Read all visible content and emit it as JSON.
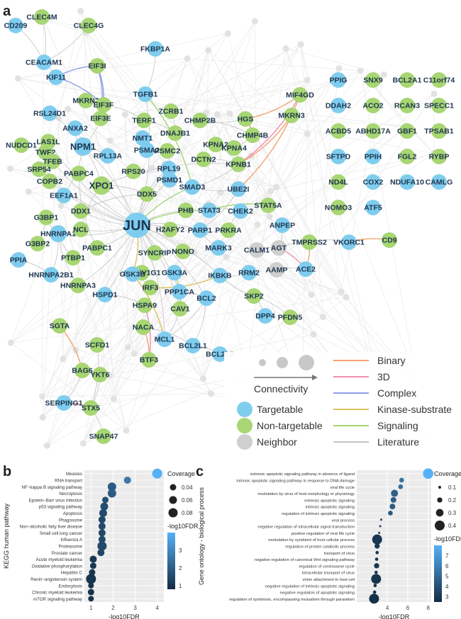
{
  "panels": {
    "a": "a",
    "b": "b",
    "c": "c"
  },
  "network": {
    "nodes": [
      {
        "id": "CD209",
        "type": "targetable"
      },
      {
        "id": "CLEC4M",
        "type": "non-targetable"
      },
      {
        "id": "CLEC4G",
        "type": "non-targetable"
      },
      {
        "id": "CEACAM1",
        "type": "targetable"
      },
      {
        "id": "KIF11",
        "type": "targetable"
      },
      {
        "id": "EIF3I",
        "type": "non-targetable"
      },
      {
        "id": "FKBP1A",
        "type": "targetable"
      },
      {
        "id": "TGFB1",
        "type": "targetable"
      },
      {
        "id": "MKRN2",
        "type": "non-targetable"
      },
      {
        "id": "EIF3F",
        "type": "non-targetable"
      },
      {
        "id": "EIF3E",
        "type": "non-targetable"
      },
      {
        "id": "RSL24D1",
        "type": "targetable"
      },
      {
        "id": "ANXA2",
        "type": "targetable"
      },
      {
        "id": "NPM1",
        "type": "targetable"
      },
      {
        "id": "NUDCD1",
        "type": "non-targetable"
      },
      {
        "id": "LAS1L",
        "type": "non-targetable"
      },
      {
        "id": "TWF2",
        "type": "non-targetable"
      },
      {
        "id": "TFEB",
        "type": "non-targetable"
      },
      {
        "id": "SRP54",
        "type": "non-targetable"
      },
      {
        "id": "COPB2",
        "type": "non-targetable"
      },
      {
        "id": "PABPC4",
        "type": "non-targetable"
      },
      {
        "id": "XPO1",
        "type": "non-targetable"
      },
      {
        "id": "EEF1A1",
        "type": "targetable"
      },
      {
        "id": "RPL13A",
        "type": "targetable"
      },
      {
        "id": "NMT1",
        "type": "targetable"
      },
      {
        "id": "PSMA2",
        "type": "targetable"
      },
      {
        "id": "PSMC2",
        "type": "non-targetable"
      },
      {
        "id": "TERF1",
        "type": "non-targetable"
      },
      {
        "id": "ZCRB1",
        "type": "non-targetable"
      },
      {
        "id": "DNAJB1",
        "type": "non-targetable"
      },
      {
        "id": "CHMP2B",
        "type": "non-targetable"
      },
      {
        "id": "HGS",
        "type": "non-targetable"
      },
      {
        "id": "MIF4GD",
        "type": "non-targetable"
      },
      {
        "id": "MKRN3",
        "type": "non-targetable"
      },
      {
        "id": "CHMP4B",
        "type": "non-targetable"
      },
      {
        "id": "KPNA2",
        "type": "non-targetable"
      },
      {
        "id": "KPNA4",
        "type": "non-targetable"
      },
      {
        "id": "DCTN2",
        "type": "non-targetable"
      },
      {
        "id": "KPNB1",
        "type": "non-targetable"
      },
      {
        "id": "RPS20",
        "type": "non-targetable"
      },
      {
        "id": "RPL19",
        "type": "targetable"
      },
      {
        "id": "PSMD1",
        "type": "targetable"
      },
      {
        "id": "SMAD3",
        "type": "targetable"
      },
      {
        "id": "UBE2I",
        "type": "targetable"
      },
      {
        "id": "DDX5",
        "type": "non-targetable"
      },
      {
        "id": "DDX1",
        "type": "non-targetable"
      },
      {
        "id": "G3BP1",
        "type": "non-targetable"
      },
      {
        "id": "HNRNPA1",
        "type": "targetable"
      },
      {
        "id": "G3BP2",
        "type": "non-targetable"
      },
      {
        "id": "NCL",
        "type": "non-targetable"
      },
      {
        "id": "JUN",
        "type": "targetable"
      },
      {
        "id": "PHB",
        "type": "non-targetable"
      },
      {
        "id": "STAT3",
        "type": "targetable"
      },
      {
        "id": "CHEK2",
        "type": "targetable"
      },
      {
        "id": "STAT5A",
        "type": "non-targetable"
      },
      {
        "id": "H2AFY2",
        "type": "non-targetable"
      },
      {
        "id": "PARP1",
        "type": "targetable"
      },
      {
        "id": "PRKRA",
        "type": "non-targetable"
      },
      {
        "id": "ANPEP",
        "type": "targetable"
      },
      {
        "id": "PPIA",
        "type": "targetable"
      },
      {
        "id": "PTBP1",
        "type": "non-targetable"
      },
      {
        "id": "PABPC1",
        "type": "non-targetable"
      },
      {
        "id": "SYNCRIP",
        "type": "non-targetable"
      },
      {
        "id": "NONO",
        "type": "non-targetable"
      },
      {
        "id": "MARK3",
        "type": "targetable"
      },
      {
        "id": "CALM1",
        "type": "neighbor"
      },
      {
        "id": "AGT",
        "type": "neighbor"
      },
      {
        "id": "TMPRSS2",
        "type": "non-targetable"
      },
      {
        "id": "VKORC1",
        "type": "targetable"
      },
      {
        "id": "CD9",
        "type": "non-targetable"
      },
      {
        "id": "HNRNPA2B1",
        "type": "targetable"
      },
      {
        "id": "ATP6V1G1",
        "type": "non-targetable"
      },
      {
        "id": "HNRNPA3",
        "type": "non-targetable"
      },
      {
        "id": "IRF3",
        "type": "non-targetable"
      },
      {
        "id": "GSK3B",
        "type": "targetable"
      },
      {
        "id": "GSK3A",
        "type": "targetable"
      },
      {
        "id": "IKBKB",
        "type": "targetable"
      },
      {
        "id": "RRM2",
        "type": "targetable"
      },
      {
        "id": "AAMP",
        "type": "neighbor"
      },
      {
        "id": "ACE2",
        "type": "targetable"
      },
      {
        "id": "HSPD1",
        "type": "targetable"
      },
      {
        "id": "PPP1CA",
        "type": "targetable"
      },
      {
        "id": "BCL2",
        "type": "targetable"
      },
      {
        "id": "SKP2",
        "type": "non-targetable"
      },
      {
        "id": "HSPA9",
        "type": "non-targetable"
      },
      {
        "id": "CAV1",
        "type": "non-targetable"
      },
      {
        "id": "DPP4",
        "type": "targetable"
      },
      {
        "id": "PFDN5",
        "type": "non-targetable"
      },
      {
        "id": "SGTA",
        "type": "non-targetable"
      },
      {
        "id": "NACA",
        "type": "non-targetable"
      },
      {
        "id": "MCL1",
        "type": "targetable"
      },
      {
        "id": "BCL2L1",
        "type": "targetable"
      },
      {
        "id": "BCL2L2",
        "type": "targetable"
      },
      {
        "id": "SCFD1",
        "type": "non-targetable"
      },
      {
        "id": "BTF3",
        "type": "non-targetable"
      },
      {
        "id": "BAG6",
        "type": "non-targetable"
      },
      {
        "id": "YKT6",
        "type": "non-targetable"
      },
      {
        "id": "SERPING1",
        "type": "targetable"
      },
      {
        "id": "STX5",
        "type": "non-targetable"
      },
      {
        "id": "SNAP47",
        "type": "non-targetable"
      },
      {
        "id": "PPIG",
        "type": "targetable"
      },
      {
        "id": "SNX9",
        "type": "non-targetable"
      },
      {
        "id": "BCL2A1",
        "type": "non-targetable"
      },
      {
        "id": "C11orf74",
        "type": "non-targetable"
      },
      {
        "id": "DDAH2",
        "type": "targetable"
      },
      {
        "id": "ACO2",
        "type": "non-targetable"
      },
      {
        "id": "RCAN3",
        "type": "non-targetable"
      },
      {
        "id": "SPECC1",
        "type": "non-targetable"
      },
      {
        "id": "ACBD5",
        "type": "non-targetable"
      },
      {
        "id": "ABHD17A",
        "type": "non-targetable"
      },
      {
        "id": "GBF1",
        "type": "non-targetable"
      },
      {
        "id": "TPSAB1",
        "type": "non-targetable"
      },
      {
        "id": "SFTPD",
        "type": "targetable"
      },
      {
        "id": "PPIH",
        "type": "targetable"
      },
      {
        "id": "FGL2",
        "type": "non-targetable"
      },
      {
        "id": "RYBP",
        "type": "non-targetable"
      },
      {
        "id": "ND4L",
        "type": "non-targetable"
      },
      {
        "id": "COX2",
        "type": "targetable"
      },
      {
        "id": "NDUFA10",
        "type": "targetable"
      },
      {
        "id": "CAMLG",
        "type": "targetable"
      },
      {
        "id": "NOMO3",
        "type": "non-targetable"
      },
      {
        "id": "ATF5",
        "type": "targetable"
      }
    ]
  },
  "legend": {
    "connectivity_label": "Connectivity",
    "node_types": [
      {
        "label": "Targetable",
        "color": "#7fcdee"
      },
      {
        "label": "Non-targetable",
        "color": "#a7d672"
      },
      {
        "label": "Neighbor",
        "color": "#cfcfcf"
      }
    ],
    "edge_types": [
      {
        "label": "Binary",
        "color": "#f2a36f"
      },
      {
        "label": "3D",
        "color": "#f28db0"
      },
      {
        "label": "Complex",
        "color": "#8f9ee8"
      },
      {
        "label": "Kinase-substrate",
        "color": "#d9c25e"
      },
      {
        "label": "Signaling",
        "color": "#a3d67a"
      },
      {
        "label": "Literature",
        "color": "#c4c4c4"
      }
    ]
  },
  "chart_data": [
    {
      "panel": "b",
      "type": "scatter",
      "ylabel": "KEGG human pathway",
      "xlabel": "-log10FDR",
      "xlim": [
        0.7,
        4.3
      ],
      "xticks": [
        1,
        2,
        3,
        4
      ],
      "categories": [
        "Measles",
        "RNA transport",
        "NF−kappa B signaling pathway",
        "Necroptosis",
        "Epstein−Barr virus infection",
        "p53 signaling pathway",
        "Apoptosis",
        "Phagosome",
        "Non−alcoholic fatty liver disease",
        "Small cell lung cancer",
        "Influenza A",
        "Proteasome",
        "Prostate cancer",
        "Acute myeloid leukemia",
        "Oxidative phosphorylation",
        "Hepatitis C",
        "Renin−angiotensin system",
        "Endocytosis",
        "Chronic myeloid leukemia",
        "mTOR signaling pathway"
      ],
      "x": [
        4.0,
        2.65,
        1.95,
        1.95,
        1.65,
        1.6,
        1.55,
        1.5,
        1.5,
        1.5,
        1.5,
        1.5,
        1.45,
        1.1,
        1.1,
        1.05,
        1.0,
        1.0,
        1.0,
        1.0
      ],
      "coverage": [
        0.09,
        0.05,
        0.07,
        0.07,
        0.04,
        0.06,
        0.06,
        0.05,
        0.05,
        0.05,
        0.05,
        0.08,
        0.05,
        0.05,
        0.04,
        0.04,
        0.09,
        0.03,
        0.04,
        0.03
      ],
      "size_legend": {
        "title": "Coverage",
        "values": [
          0.04,
          0.06,
          0.08
        ],
        "labels": [
          "0.04",
          "0.06",
          "0.08"
        ]
      },
      "color_legend": {
        "title": "-log10FDR",
        "min": 0.8,
        "max": 4.0,
        "ticks": [
          1,
          2,
          3
        ],
        "low_color": "#132b43",
        "high_color": "#56b1f7"
      }
    },
    {
      "panel": "c",
      "type": "scatter",
      "ylabel": "Gene ontology - biological process",
      "xlabel": "-log10FDR",
      "xlim": [
        1.0,
        8.3
      ],
      "xticks": [
        4,
        6,
        8
      ],
      "categories": [
        "extrinsic apoptotic signaling pathway in absence of ligand",
        "intrinsic apoptotic signaling pathway in response to DNA damage",
        "viral life cycle",
        "modulation by virus of host morphology or physiology",
        "extrinsic apoptotic signaling",
        "intrinsic apoptotic signaling",
        "regulation of intrinsic apoptotic signaling",
        "viral process",
        "negative regulation of intracellular signal transduction",
        "positive regulation of viral life cycle",
        "modulation by symbiont of host cellular process",
        "regulation of protein catabolic process",
        "transport of virus",
        "negative regulation of canonical Wnt signaling pathway",
        "regulation of centrosome cycle",
        "intracellular transport of virus",
        "virion attachment to host cell",
        "negative regulation of intrinsic apoptotic signaling",
        "negative regulation of apoptotic signaling",
        "regulation of symbiosis, encompassing mutualism through parasitism"
      ],
      "x": [
        8.0,
        5.4,
        5.3,
        4.7,
        4.6,
        4.5,
        4.3,
        3.4,
        3.3,
        3.2,
        3.0,
        3.0,
        3.0,
        2.95,
        2.95,
        2.9,
        2.9,
        2.8,
        2.75,
        2.7
      ],
      "coverage": [
        0.42,
        0.18,
        0.18,
        0.28,
        0.22,
        0.22,
        0.18,
        0.05,
        0.05,
        0.07,
        0.4,
        0.2,
        0.12,
        0.12,
        0.2,
        0.12,
        0.4,
        0.12,
        0.12,
        0.4
      ],
      "size_legend": {
        "title": "Coverage",
        "values": [
          0.1,
          0.2,
          0.3,
          0.4
        ],
        "labels": [
          "0.1",
          "0.2",
          "0.3",
          "0.4"
        ]
      },
      "color_legend": {
        "title": "-log10FDR",
        "min": 2.5,
        "max": 8.0,
        "ticks": [
          3,
          4,
          5,
          6,
          7
        ],
        "low_color": "#132b43",
        "high_color": "#56b1f7"
      }
    }
  ]
}
